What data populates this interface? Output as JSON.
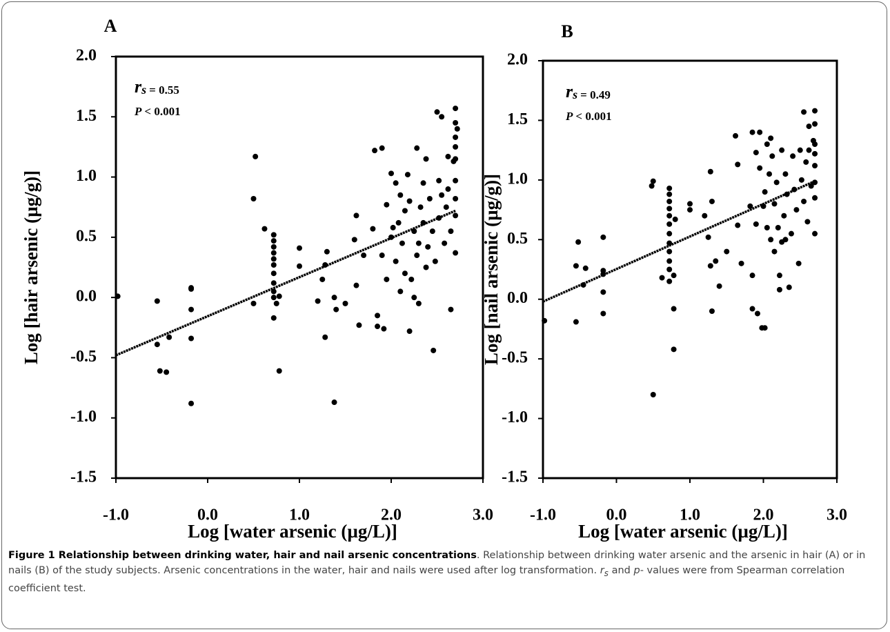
{
  "chart_data": [
    {
      "type": "scatter",
      "panel_label": "A",
      "x_label": "Log [water arsenic (µg/L)]",
      "y_label": "Log [hair arsenic (µg/g)]",
      "stat_symbol": "r",
      "stat_subscript": "s",
      "stat_value": "= 0.55",
      "p_symbol": "P",
      "p_value": "< 0.001",
      "xlim": [
        -1,
        3
      ],
      "ylim": [
        -1.5,
        2
      ],
      "xticks": [
        {
          "value": -1,
          "label": "-1.0"
        },
        {
          "value": 0,
          "label": "0.0"
        },
        {
          "value": 1,
          "label": "1.0"
        },
        {
          "value": 2,
          "label": "2.0"
        },
        {
          "value": 3,
          "label": "3.0"
        }
      ],
      "yticks": [
        -1.5,
        {
          "value": -1,
          "label": "-1.0"
        },
        -0.5,
        {
          "value": 0,
          "label": "0.0"
        },
        0.5,
        {
          "value": 1,
          "label": "1.0"
        },
        1.5,
        {
          "value": 2,
          "label": "2.0"
        }
      ],
      "color": "#000000",
      "points": {
        "x": [
          -0.98,
          -0.55,
          -0.55,
          -0.52,
          -0.45,
          -0.42,
          -0.18,
          -0.18,
          -0.18,
          -0.18,
          -0.18,
          0.5,
          0.52,
          0.5,
          0.62,
          0.72,
          0.72,
          0.72,
          0.72,
          0.72,
          0.72,
          0.72,
          0.72,
          0.72,
          0.72,
          0.72,
          0.78,
          0.78,
          0.75,
          1.0,
          1.0,
          1.2,
          1.25,
          1.28,
          1.3,
          1.28,
          1.38,
          1.38,
          1.4,
          1.5,
          1.6,
          1.62,
          1.62,
          1.65,
          1.7,
          1.8,
          1.82,
          1.85,
          1.85,
          1.9,
          1.9,
          1.92,
          1.95,
          2.0,
          2.02,
          2.05,
          2.05,
          2.08,
          2.1,
          2.12,
          2.15,
          2.15,
          2.18,
          2.2,
          2.2,
          2.22,
          2.25,
          2.28,
          2.28,
          2.3,
          2.32,
          2.35,
          2.35,
          2.38,
          2.38,
          2.4,
          2.42,
          2.45,
          2.46,
          2.48,
          2.5,
          2.52,
          2.52,
          2.55,
          2.55,
          2.58,
          2.6,
          2.62,
          2.62,
          2.65,
          2.65,
          2.68,
          2.7,
          2.7,
          2.7,
          2.7,
          2.7,
          2.7,
          2.7,
          2.7,
          2.7,
          2.72,
          1.95,
          2.0,
          2.25,
          2.1,
          2.3
        ],
        "y": [
          0.01,
          -0.03,
          -0.39,
          -0.61,
          -0.62,
          -0.33,
          0.08,
          0.07,
          -0.1,
          -0.34,
          -0.88,
          0.82,
          1.17,
          -0.05,
          0.57,
          0.52,
          0.47,
          0.42,
          0.37,
          0.32,
          0.27,
          0.2,
          0.12,
          0.05,
          0.0,
          -0.17,
          -0.61,
          0.01,
          -0.05,
          0.41,
          0.26,
          -0.03,
          0.15,
          0.27,
          0.38,
          -0.33,
          -0.87,
          0.0,
          -0.1,
          -0.05,
          0.48,
          0.68,
          0.1,
          -0.23,
          0.35,
          0.57,
          1.22,
          -0.15,
          -0.24,
          1.24,
          0.35,
          -0.26,
          0.77,
          1.03,
          0.58,
          0.95,
          0.3,
          0.62,
          0.05,
          0.45,
          0.72,
          0.2,
          1.02,
          -0.28,
          0.8,
          0.15,
          0.55,
          1.24,
          0.35,
          -0.05,
          0.75,
          0.95,
          0.62,
          1.15,
          0.25,
          0.42,
          0.82,
          0.55,
          -0.44,
          0.3,
          1.54,
          0.97,
          0.66,
          0.85,
          1.5,
          0.45,
          0.75,
          1.17,
          0.9,
          -0.1,
          0.55,
          1.13,
          1.57,
          1.45,
          1.33,
          1.25,
          1.15,
          0.97,
          0.82,
          0.68,
          0.37,
          1.4,
          0.15,
          0.5,
          0.0,
          0.85,
          0.45
        ]
      },
      "fit": {
        "x": [
          -1,
          2.7
        ],
        "y": [
          -0.48,
          0.72
        ]
      }
    },
    {
      "type": "scatter",
      "panel_label": "B",
      "x_label": "Log [water arsenic (µg/L)]",
      "y_label": "Log [nail arsenic (µg/g)]",
      "stat_symbol": "r",
      "stat_subscript": "s",
      "stat_value": "= 0.49",
      "p_symbol": "P",
      "p_value": "< 0.001",
      "xlim": [
        -1,
        3
      ],
      "ylim": [
        -1.5,
        2
      ],
      "xticks": [
        {
          "value": -1,
          "label": "-1.0"
        },
        {
          "value": 0,
          "label": "0.0"
        },
        {
          "value": 1,
          "label": "1.0"
        },
        {
          "value": 2,
          "label": "2.0"
        },
        {
          "value": 3,
          "label": "3.0"
        }
      ],
      "yticks": [
        -1.5,
        {
          "value": -1,
          "label": "-1.0"
        },
        -0.5,
        {
          "value": 0,
          "label": "0.0"
        },
        0.5,
        {
          "value": 1,
          "label": "1.0"
        },
        1.5,
        {
          "value": 2,
          "label": "2.0"
        }
      ],
      "color": "#000000",
      "points": {
        "x": [
          -0.98,
          -0.55,
          -0.55,
          -0.52,
          -0.42,
          -0.45,
          -0.18,
          -0.18,
          -0.18,
          -0.18,
          -0.18,
          0.48,
          0.5,
          0.5,
          0.62,
          0.72,
          0.72,
          0.72,
          0.72,
          0.72,
          0.72,
          0.72,
          0.72,
          0.72,
          0.72,
          0.72,
          0.72,
          0.78,
          0.78,
          0.78,
          0.8,
          1.0,
          1.0,
          1.2,
          1.25,
          1.28,
          1.28,
          1.3,
          1.3,
          1.35,
          1.4,
          1.5,
          1.62,
          1.65,
          1.65,
          1.7,
          1.82,
          1.85,
          1.85,
          1.85,
          1.9,
          1.9,
          1.92,
          1.95,
          1.95,
          1.98,
          2.02,
          2.02,
          2.05,
          2.05,
          2.08,
          2.1,
          2.12,
          2.15,
          2.15,
          2.18,
          2.2,
          2.22,
          2.22,
          2.25,
          2.25,
          2.28,
          2.3,
          2.32,
          2.35,
          2.38,
          2.4,
          2.42,
          2.45,
          2.48,
          2.5,
          2.52,
          2.55,
          2.55,
          2.58,
          2.6,
          2.62,
          2.62,
          2.65,
          2.68,
          2.7,
          2.7,
          2.7,
          2.7,
          2.7,
          2.7,
          2.7,
          2.7,
          2.1,
          2.3,
          2.0
        ],
        "y": [
          -0.18,
          0.28,
          -0.19,
          0.48,
          0.26,
          0.12,
          0.52,
          0.24,
          0.21,
          0.06,
          -0.12,
          0.95,
          0.99,
          -0.8,
          0.18,
          0.93,
          0.88,
          0.82,
          0.76,
          0.7,
          0.63,
          0.55,
          0.47,
          0.4,
          0.32,
          0.25,
          0.15,
          0.2,
          -0.08,
          -0.42,
          0.67,
          0.8,
          0.75,
          0.7,
          0.52,
          1.07,
          0.28,
          0.82,
          -0.1,
          0.32,
          0.11,
          0.4,
          1.37,
          1.13,
          0.62,
          0.3,
          0.78,
          1.4,
          0.2,
          -0.08,
          1.23,
          0.63,
          -0.12,
          1.4,
          1.1,
          -0.24,
          -0.24,
          0.9,
          1.3,
          0.6,
          1.05,
          0.5,
          1.2,
          0.8,
          0.4,
          0.98,
          0.6,
          0.2,
          0.08,
          1.25,
          0.48,
          0.7,
          1.05,
          0.88,
          0.1,
          0.55,
          1.2,
          0.92,
          0.75,
          0.3,
          1.25,
          1.0,
          1.57,
          0.82,
          1.15,
          0.65,
          1.45,
          1.25,
          0.95,
          1.33,
          1.58,
          1.47,
          1.3,
          1.22,
          1.12,
          0.98,
          0.85,
          0.55,
          1.35,
          0.5,
          0.78
        ]
      },
      "fit": {
        "x": [
          -1,
          2.7
        ],
        "y": [
          -0.02,
          0.99
        ]
      }
    }
  ],
  "caption": {
    "title": "Figure 1 Relationship between drinking water, hair and nail arsenic concentrations",
    "parts": [
      ". Relationship between drinking water arsenic and the arsenic in hair (A) or in nails (B) of the study subjects. Arsenic concentrations in the water, hair and nails were used after log transformation. ",
      "r",
      "s",
      " and ",
      "p",
      "- values were from Spearman correlation coefficient test."
    ]
  }
}
